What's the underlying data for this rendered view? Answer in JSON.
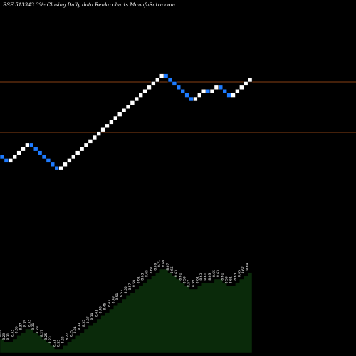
{
  "header": {
    "title": "BSE 513343 3%- Closing Daily data Renko charts MunafaSutra.com"
  },
  "colors": {
    "background": "#000000",
    "up_brick": "#ffffff",
    "down_brick": "#1e7bff",
    "reference_line": "#b5561c",
    "volume_fill": "#0a2a0a",
    "volume_edge": "#000000"
  },
  "chart_data": {
    "type": "renko",
    "directions": [
      "down",
      "down",
      "up",
      "up",
      "up",
      "up",
      "up",
      "down",
      "down",
      "down",
      "down",
      "down",
      "down",
      "down",
      "up",
      "up",
      "up",
      "up",
      "up",
      "up",
      "up",
      "up",
      "up",
      "up",
      "up",
      "up",
      "up",
      "up",
      "up",
      "up",
      "up",
      "up",
      "up",
      "up",
      "up",
      "up",
      "up",
      "up",
      "up",
      "down",
      "down",
      "down",
      "down",
      "down",
      "down",
      "down",
      "up",
      "up",
      "up",
      "down",
      "up",
      "up",
      "down",
      "down",
      "down",
      "up",
      "up",
      "up",
      "up",
      "up"
    ],
    "reference_lines": 2,
    "lower_panel": {
      "type": "area",
      "values_visible": true,
      "labels": [
        "8.29",
        "8.29",
        "8.31",
        "8.33",
        "8.35",
        "8.37",
        "8.35",
        "8.33",
        "8.31",
        "8.29",
        "8.27",
        "8.25",
        "8.23",
        "8.21",
        "8.23",
        "8.25",
        "8.27",
        "8.29",
        "8.31",
        "8.33",
        "8.35",
        "8.37",
        "8.39",
        "8.41",
        "8.43",
        "8.45",
        "8.47",
        "8.49",
        "8.51",
        "8.53",
        "8.55",
        "8.57",
        "8.59",
        "8.61",
        "8.63",
        "8.65",
        "8.67",
        "8.69",
        "8.71",
        "8.69",
        "8.67",
        "8.65",
        "8.63",
        "8.61",
        "8.59",
        "8.57",
        "8.59",
        "8.61",
        "8.63",
        "8.61",
        "8.63",
        "8.65",
        "8.63",
        "8.61",
        "8.59",
        "8.61",
        "8.63",
        "8.65",
        "8.67",
        "8.69"
      ]
    }
  }
}
